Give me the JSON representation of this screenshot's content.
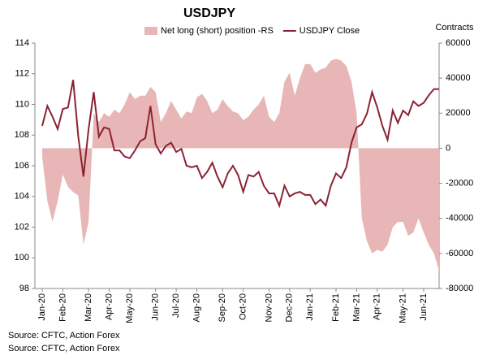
{
  "chart_data": {
    "type": "area_line",
    "title": "USDJPY",
    "y2_label": "Contracts",
    "source": [
      "Source: CFTC, Action Forex",
      "Source: CFTC, Action Forex"
    ],
    "categories": [
      "Jan-20",
      null,
      null,
      null,
      "Feb-20",
      null,
      null,
      null,
      null,
      "Mar-20",
      null,
      null,
      null,
      "Apr-20",
      null,
      null,
      null,
      "May-20",
      null,
      null,
      null,
      null,
      "Jun-20",
      null,
      null,
      null,
      "Jul-20",
      null,
      null,
      null,
      "Aug-20",
      null,
      null,
      null,
      null,
      "Sep-20",
      null,
      null,
      null,
      "Oct-20",
      null,
      null,
      null,
      null,
      "Nov-20",
      null,
      null,
      null,
      "Dec-20",
      null,
      null,
      null,
      "Jan-21",
      null,
      null,
      null,
      null,
      "Feb-21",
      null,
      null,
      null,
      "Mar-21",
      null,
      null,
      null,
      "Apr-21",
      null,
      null,
      null,
      null,
      "May-21",
      null,
      null,
      null,
      "Jun-21",
      null,
      null,
      null
    ],
    "series": [
      {
        "name": "Net long (short) position -RS",
        "color": "#e8b6b6",
        "axis": "y2",
        "kind": "area",
        "values": [
          -5000,
          -30000,
          -42000,
          -30000,
          -15000,
          -22000,
          -25000,
          -27000,
          -55000,
          -42000,
          20000,
          15000,
          20000,
          18000,
          22000,
          20000,
          25000,
          32000,
          28000,
          30000,
          30000,
          35000,
          32000,
          15000,
          20000,
          27000,
          22000,
          17000,
          21000,
          20000,
          29000,
          31000,
          27000,
          20000,
          22000,
          28000,
          24000,
          21000,
          20000,
          16000,
          18000,
          22000,
          25000,
          30000,
          18000,
          15000,
          20000,
          38000,
          43000,
          30000,
          40000,
          48000,
          48000,
          43000,
          45000,
          46000,
          50000,
          51000,
          50000,
          47000,
          38000,
          20000,
          -40000,
          -53000,
          -60000,
          -58000,
          -59000,
          -55000,
          -45000,
          -42000,
          -42000,
          -50000,
          -48000,
          -40000,
          -48000,
          -55000,
          -60000,
          -70000
        ]
      },
      {
        "name": "USDJPY Close",
        "color": "#8b2232",
        "axis": "y",
        "kind": "line",
        "values": [
          108.6,
          109.9,
          109.2,
          108.4,
          109.7,
          109.8,
          111.6,
          107.9,
          105.3,
          108.4,
          110.8,
          107.9,
          108.5,
          108.4,
          107.0,
          107.0,
          106.6,
          106.5,
          107.0,
          107.6,
          107.8,
          109.9,
          107.4,
          106.8,
          107.3,
          107.5,
          106.9,
          107.1,
          106.0,
          105.9,
          106.0,
          105.2,
          105.6,
          106.2,
          105.3,
          104.6,
          105.5,
          106.0,
          105.4,
          104.3,
          105.4,
          105.3,
          105.6,
          104.7,
          104.2,
          104.2,
          103.4,
          104.7,
          104.0,
          104.2,
          104.3,
          104.1,
          104.1,
          103.5,
          103.8,
          103.4,
          104.7,
          105.5,
          105.2,
          105.9,
          107.5,
          108.5,
          108.7,
          109.4,
          110.8,
          109.8,
          108.6,
          107.7,
          109.6,
          108.8,
          109.6,
          109.3,
          110.2,
          109.9,
          110.1,
          110.6,
          111.0,
          111.0
        ]
      }
    ],
    "ylim": [
      98,
      114
    ],
    "yticks": [
      98,
      100,
      102,
      104,
      106,
      108,
      110,
      112,
      114
    ],
    "y2lim": [
      -80000,
      60000
    ],
    "y2ticks": [
      -80000,
      -60000,
      -40000,
      -20000,
      0,
      20000,
      40000,
      60000
    ],
    "grid": false,
    "legend": "top"
  }
}
